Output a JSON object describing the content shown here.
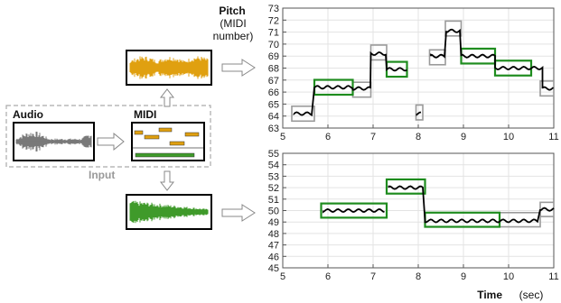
{
  "input": {
    "audio_label": "Audio",
    "midi_label": "MIDI",
    "input_label": "Input"
  },
  "top_axis": {
    "ylabel_line1": "Pitch",
    "ylabel_line2": "(MIDI",
    "ylabel_line3": "number)",
    "xlim": [
      5,
      11
    ],
    "ylim": [
      63,
      73
    ],
    "xticks": [
      "5",
      "6",
      "7",
      "8",
      "9",
      "10",
      "11"
    ],
    "yticks": [
      "63",
      "64",
      "65",
      "66",
      "67",
      "68",
      "69",
      "70",
      "71",
      "72",
      "73"
    ]
  },
  "bottom_axis": {
    "xlabel_bold": "Time",
    "xlabel_unit": "(sec)",
    "xlim": [
      5,
      11
    ],
    "ylim": [
      45,
      55
    ],
    "xticks": [
      "5",
      "6",
      "7",
      "8",
      "9",
      "10",
      "11"
    ],
    "yticks": [
      "45",
      "46",
      "47",
      "48",
      "49",
      "50",
      "51",
      "52",
      "53",
      "54",
      "55"
    ]
  },
  "chart_data": [
    {
      "type": "line",
      "ylim": [
        63,
        73
      ],
      "xlim": [
        5,
        11
      ],
      "notes_gray": [
        {
          "x0": 5.2,
          "x1": 5.7,
          "y": 64.2
        },
        {
          "x0": 6.55,
          "x1": 6.95,
          "y": 66.2
        },
        {
          "x0": 6.95,
          "x1": 7.3,
          "y": 69.3
        },
        {
          "x0": 7.95,
          "x1": 8.1,
          "y": 64.3
        },
        {
          "x0": 8.25,
          "x1": 8.6,
          "y": 68.9
        },
        {
          "x0": 8.6,
          "x1": 8.95,
          "y": 71.3
        },
        {
          "x0": 10.7,
          "x1": 11.0,
          "y": 66.3
        }
      ],
      "notes_green": [
        {
          "x0": 5.7,
          "x1": 6.55,
          "y": 66.4
        },
        {
          "x0": 7.3,
          "x1": 7.75,
          "y": 67.9
        },
        {
          "x0": 8.95,
          "x1": 9.7,
          "y": 69.0
        },
        {
          "x0": 9.7,
          "x1": 10.5,
          "y": 68.0
        }
      ],
      "pitch_segments": [
        {
          "x0": 5.25,
          "x1": 5.65,
          "y": 64.2
        },
        {
          "x0": 5.7,
          "x1": 6.55,
          "y": 66.4
        },
        {
          "x0": 6.55,
          "x1": 6.95,
          "y": 66.3
        },
        {
          "x0": 6.95,
          "x1": 7.3,
          "y": 69.2
        },
        {
          "x0": 7.3,
          "x1": 7.75,
          "y": 67.9
        },
        {
          "x0": 7.97,
          "x1": 8.08,
          "y": 64.2
        },
        {
          "x0": 8.28,
          "x1": 8.58,
          "y": 69.0
        },
        {
          "x0": 8.62,
          "x1": 8.92,
          "y": 71.1
        },
        {
          "x0": 8.95,
          "x1": 9.7,
          "y": 69.0
        },
        {
          "x0": 9.7,
          "x1": 10.75,
          "y": 68.0
        },
        {
          "x0": 10.75,
          "x1": 11.0,
          "y": 66.3
        }
      ]
    },
    {
      "type": "line",
      "ylim": [
        45,
        55
      ],
      "xlim": [
        5,
        11
      ],
      "notes_gray": [
        {
          "x0": 9.8,
          "x1": 10.7,
          "y": 49.2
        },
        {
          "x0": 10.7,
          "x1": 11.0,
          "y": 50.1
        }
      ],
      "notes_green": [
        {
          "x0": 5.85,
          "x1": 7.3,
          "y": 50.0
        },
        {
          "x0": 7.3,
          "x1": 8.15,
          "y": 52.1
        },
        {
          "x0": 8.15,
          "x1": 9.8,
          "y": 49.2
        }
      ],
      "pitch_segments": [
        {
          "x0": 5.9,
          "x1": 7.25,
          "y": 50.0
        },
        {
          "x0": 7.35,
          "x1": 8.12,
          "y": 52.0
        },
        {
          "x0": 8.15,
          "x1": 10.65,
          "y": 49.1
        },
        {
          "x0": 10.7,
          "x1": 11.0,
          "y": 50.1
        }
      ]
    }
  ],
  "colors": {
    "gray_box": "#9a9a9a",
    "green_box": "#1e8c1e",
    "pitch_line": "#000000",
    "orange_wave": "#e0a010",
    "green_wave": "#3f9a2a",
    "audio_wave": "#6a6a6a"
  }
}
